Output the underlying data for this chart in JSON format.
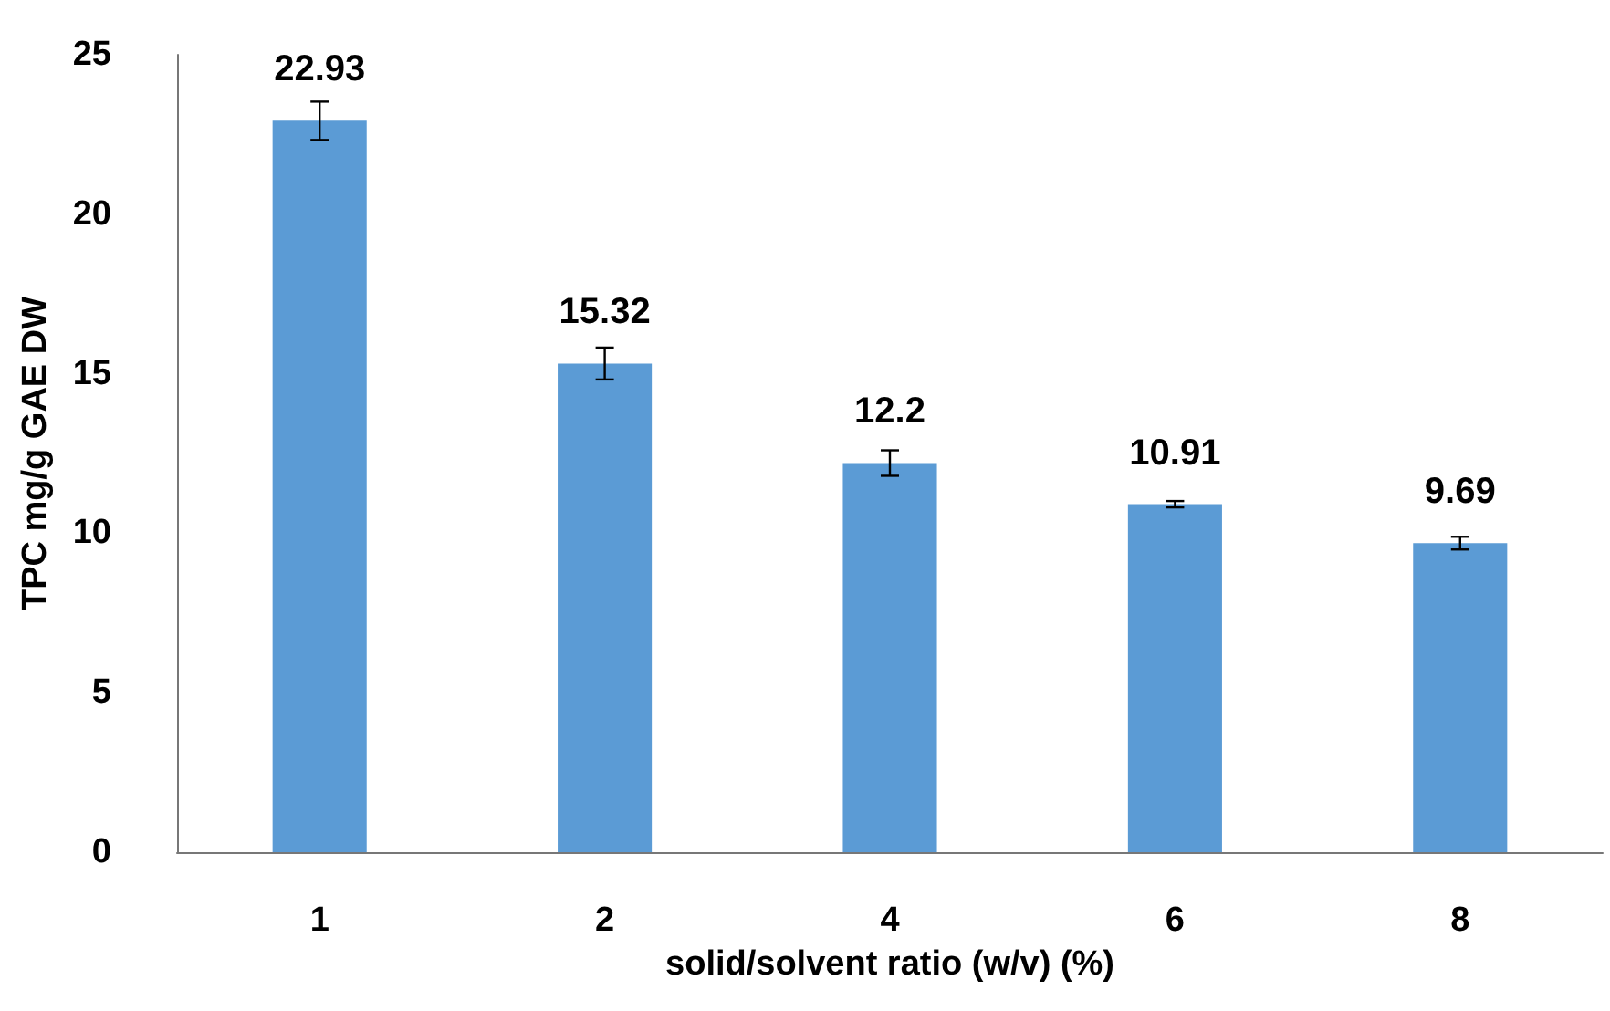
{
  "chart_data": {
    "type": "bar",
    "xlabel": "solid/solvent ratio (w/v) (%)",
    "ylabel": "TPC mg/g GAE DW",
    "categories": [
      "1",
      "2",
      "4",
      "6",
      "8"
    ],
    "values": [
      22.93,
      15.32,
      12.2,
      10.91,
      9.69
    ],
    "errors": [
      0.6,
      0.5,
      0.4,
      0.1,
      0.2
    ],
    "color": "#5b9bd5",
    "ylim": [
      0,
      25
    ],
    "yticks": [
      0,
      5,
      10,
      15,
      20,
      25
    ],
    "grid": false,
    "data_labels": true
  }
}
